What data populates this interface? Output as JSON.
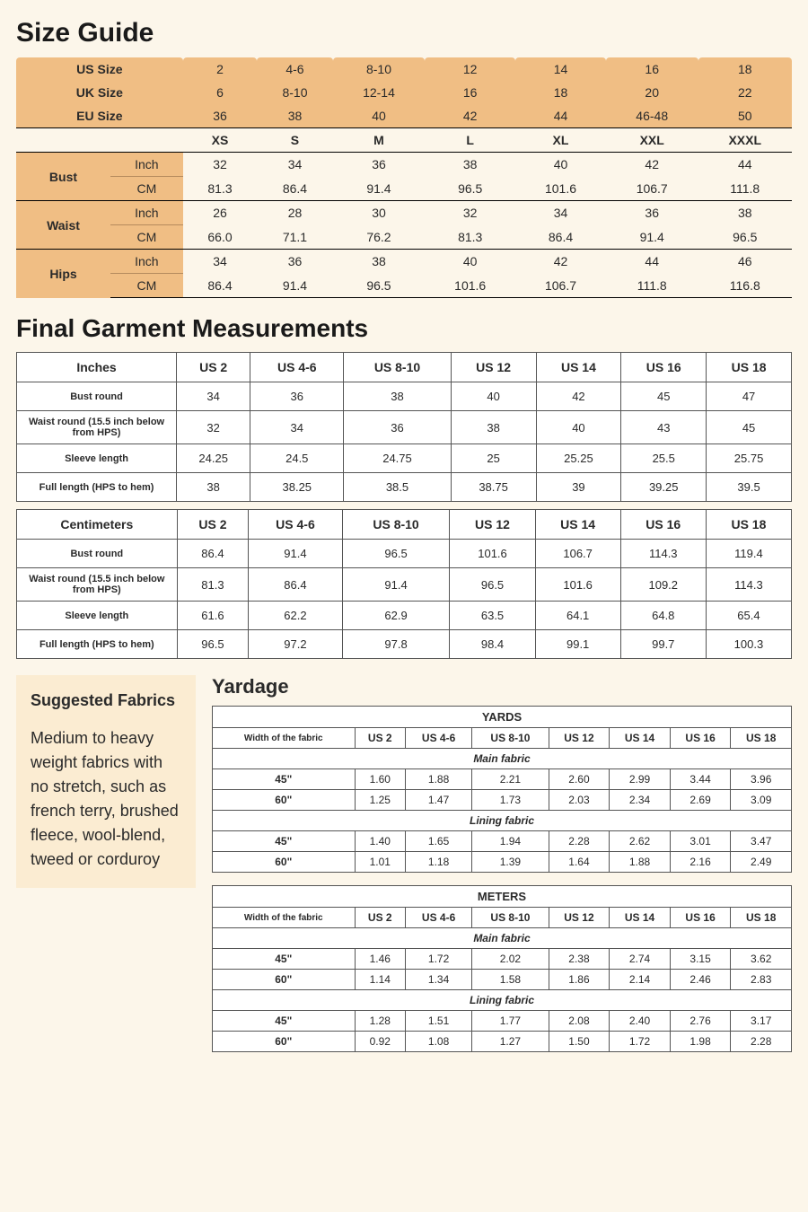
{
  "colors": {
    "page_bg": "#fcf6ea",
    "header_bg": "#f0be84",
    "fabrics_bg": "#fbecd2",
    "table_bg": "#ffffff",
    "border": "#555555",
    "text": "#2a2a2a"
  },
  "sizeGuide": {
    "title": "Size Guide",
    "systemsLabels": [
      "US Size",
      "UK Size",
      "EU Size"
    ],
    "systemsValues": [
      [
        "2",
        "4-6",
        "8-10",
        "12",
        "14",
        "16",
        "18"
      ],
      [
        "6",
        "8-10",
        "12-14",
        "16",
        "18",
        "20",
        "22"
      ],
      [
        "36",
        "38",
        "40",
        "42",
        "44",
        "46-48",
        "50"
      ]
    ],
    "letterSizes": [
      "XS",
      "S",
      "M",
      "L",
      "XL",
      "XXL",
      "XXXL"
    ],
    "measurements": [
      {
        "label": "Bust",
        "inch": [
          "32",
          "34",
          "36",
          "38",
          "40",
          "42",
          "44"
        ],
        "cm": [
          "81.3",
          "86.4",
          "91.4",
          "96.5",
          "101.6",
          "106.7",
          "111.8"
        ]
      },
      {
        "label": "Waist",
        "inch": [
          "26",
          "28",
          "30",
          "32",
          "34",
          "36",
          "38"
        ],
        "cm": [
          "66.0",
          "71.1",
          "76.2",
          "81.3",
          "86.4",
          "91.4",
          "96.5"
        ]
      },
      {
        "label": "Hips",
        "inch": [
          "34",
          "36",
          "38",
          "40",
          "42",
          "44",
          "46"
        ],
        "cm": [
          "86.4",
          "91.4",
          "96.5",
          "101.6",
          "106.7",
          "111.8",
          "116.8"
        ]
      }
    ],
    "unitLabels": {
      "inch": "Inch",
      "cm": "CM"
    }
  },
  "finalGarment": {
    "title": "Final Garment Measurements",
    "sizeHeaders": [
      "US 2",
      "US 4-6",
      "US 8-10",
      "US 12",
      "US 14",
      "US 16",
      "US 18"
    ],
    "tables": [
      {
        "unit": "Inches",
        "rows": [
          {
            "label": "Bust round",
            "values": [
              "34",
              "36",
              "38",
              "40",
              "42",
              "45",
              "47"
            ]
          },
          {
            "label": "Waist round (15.5 inch below from HPS)",
            "values": [
              "32",
              "34",
              "36",
              "38",
              "40",
              "43",
              "45"
            ]
          },
          {
            "label": "Sleeve length",
            "values": [
              "24.25",
              "24.5",
              "24.75",
              "25",
              "25.25",
              "25.5",
              "25.75"
            ]
          },
          {
            "label": "Full length (HPS to hem)",
            "values": [
              "38",
              "38.25",
              "38.5",
              "38.75",
              "39",
              "39.25",
              "39.5"
            ]
          }
        ]
      },
      {
        "unit": "Centimeters",
        "rows": [
          {
            "label": "Bust round",
            "values": [
              "86.4",
              "91.4",
              "96.5",
              "101.6",
              "106.7",
              "114.3",
              "119.4"
            ]
          },
          {
            "label": "Waist round (15.5 inch below from HPS)",
            "values": [
              "81.3",
              "86.4",
              "91.4",
              "96.5",
              "101.6",
              "109.2",
              "114.3"
            ]
          },
          {
            "label": "Sleeve length",
            "values": [
              "61.6",
              "62.2",
              "62.9",
              "63.5",
              "64.1",
              "64.8",
              "65.4"
            ]
          },
          {
            "label": "Full length (HPS to hem)",
            "values": [
              "96.5",
              "97.2",
              "97.8",
              "98.4",
              "99.1",
              "99.7",
              "100.3"
            ]
          }
        ]
      }
    ]
  },
  "fabrics": {
    "title": "Suggested Fabrics",
    "body": "Medium to heavy weight fabrics with no stretch, such as french terry, brushed fleece, wool-blend, tweed or corduroy"
  },
  "yardage": {
    "title": "Yardage",
    "widthLabel": "Width of the fabric",
    "sizeHeaders": [
      "US 2",
      "US 4-6",
      "US 8-10",
      "US 12",
      "US 14",
      "US 16",
      "US 18"
    ],
    "tables": [
      {
        "unit": "YARDS",
        "sections": [
          {
            "label": "Main fabric",
            "rows": [
              {
                "width": "45\"",
                "values": [
                  "1.60",
                  "1.88",
                  "2.21",
                  "2.60",
                  "2.99",
                  "3.44",
                  "3.96"
                ]
              },
              {
                "width": "60\"",
                "values": [
                  "1.25",
                  "1.47",
                  "1.73",
                  "2.03",
                  "2.34",
                  "2.69",
                  "3.09"
                ]
              }
            ]
          },
          {
            "label": "Lining fabric",
            "rows": [
              {
                "width": "45\"",
                "values": [
                  "1.40",
                  "1.65",
                  "1.94",
                  "2.28",
                  "2.62",
                  "3.01",
                  "3.47"
                ]
              },
              {
                "width": "60\"",
                "values": [
                  "1.01",
                  "1.18",
                  "1.39",
                  "1.64",
                  "1.88",
                  "2.16",
                  "2.49"
                ]
              }
            ]
          }
        ]
      },
      {
        "unit": "METERS",
        "sections": [
          {
            "label": "Main fabric",
            "rows": [
              {
                "width": "45\"",
                "values": [
                  "1.46",
                  "1.72",
                  "2.02",
                  "2.38",
                  "2.74",
                  "3.15",
                  "3.62"
                ]
              },
              {
                "width": "60\"",
                "values": [
                  "1.14",
                  "1.34",
                  "1.58",
                  "1.86",
                  "2.14",
                  "2.46",
                  "2.83"
                ]
              }
            ]
          },
          {
            "label": "Lining fabric",
            "rows": [
              {
                "width": "45\"",
                "values": [
                  "1.28",
                  "1.51",
                  "1.77",
                  "2.08",
                  "2.40",
                  "2.76",
                  "3.17"
                ]
              },
              {
                "width": "60\"",
                "values": [
                  "0.92",
                  "1.08",
                  "1.27",
                  "1.50",
                  "1.72",
                  "1.98",
                  "2.28"
                ]
              }
            ]
          }
        ]
      }
    ]
  }
}
